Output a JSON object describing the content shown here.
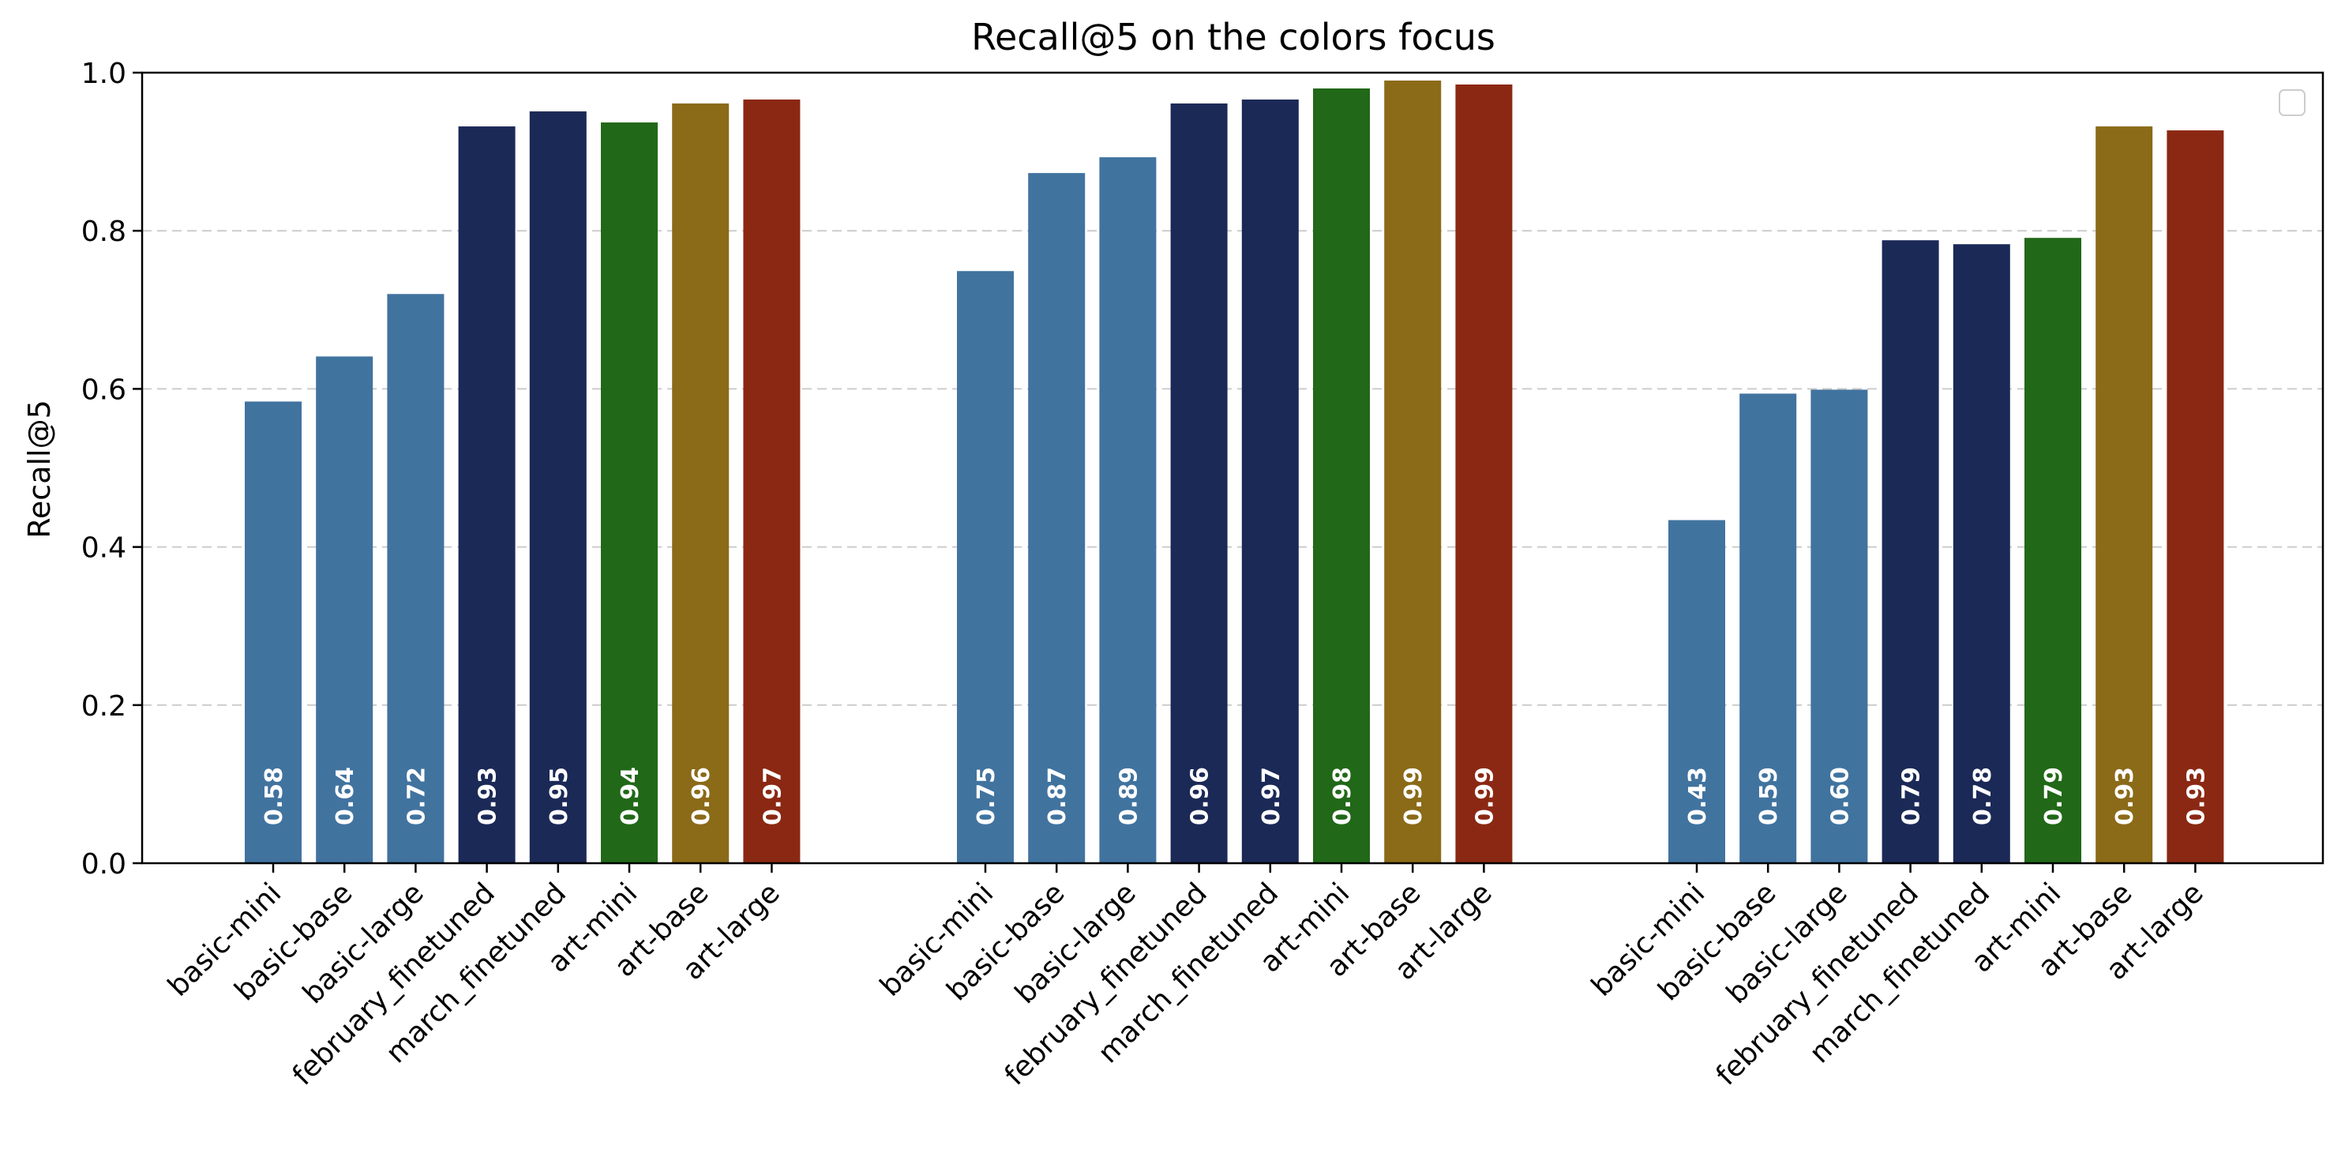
{
  "chart_data": {
    "type": "bar",
    "title": "Recall@5 on the colors focus",
    "xlabel": "",
    "ylabel": "Recall@5",
    "ylim": [
      0,
      1.0
    ],
    "yticks": [
      "0.0",
      "0.2",
      "0.4",
      "0.6",
      "0.8",
      "1.0"
    ],
    "grid": "y-dashed",
    "legend": {
      "placement": "top-right",
      "entries": []
    },
    "categories": [
      "basic-mini",
      "basic-base",
      "basic-large",
      "february_finetuned",
      "march_finetuned",
      "art-mini",
      "art-base",
      "art-large"
    ],
    "colors": [
      "#41739f",
      "#41739f",
      "#41739f",
      "#1b2957",
      "#1b2957",
      "#216818",
      "#8b6a18",
      "#8b2813"
    ],
    "groups": [
      {
        "values": [
          0.584,
          0.641,
          0.72,
          0.932,
          0.951,
          0.937,
          0.961,
          0.966
        ],
        "labels": [
          "0.58",
          "0.64",
          "0.72",
          "0.93",
          "0.95",
          "0.94",
          "0.96",
          "0.97"
        ]
      },
      {
        "values": [
          0.749,
          0.873,
          0.893,
          0.961,
          0.966,
          0.98,
          0.99,
          0.985
        ],
        "labels": [
          "0.75",
          "0.87",
          "0.89",
          "0.96",
          "0.97",
          "0.98",
          "0.99",
          "0.99"
        ]
      },
      {
        "values": [
          0.434,
          0.594,
          0.599,
          0.788,
          0.783,
          0.791,
          0.932,
          0.927
        ],
        "labels": [
          "0.43",
          "0.59",
          "0.60",
          "0.79",
          "0.78",
          "0.79",
          "0.93",
          "0.93"
        ]
      }
    ]
  }
}
